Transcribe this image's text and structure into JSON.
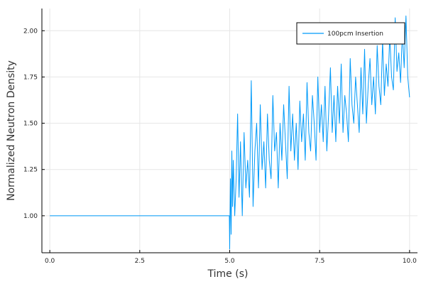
{
  "chart_data": {
    "type": "line",
    "title": "",
    "xlabel": "Time (s)",
    "ylabel": "Normalized Neutron Density",
    "xlim": [
      -0.22,
      10.22
    ],
    "ylim": [
      0.8,
      2.12
    ],
    "xticks": [
      0.0,
      2.5,
      5.0,
      7.5,
      10.0
    ],
    "xtick_labels": [
      "0.0",
      "2.5",
      "5.0",
      "7.5",
      "10.0"
    ],
    "yticks": [
      1.0,
      1.25,
      1.5,
      1.75,
      2.0
    ],
    "ytick_labels": [
      "1.00",
      "1.25",
      "1.50",
      "1.75",
      "2.00"
    ],
    "grid": true,
    "legend_position": "top-right",
    "series": [
      {
        "name": "100pcm Insertion",
        "color": "#009af9",
        "x": [
          0.0,
          0.5,
          1.0,
          1.5,
          2.0,
          2.5,
          3.0,
          3.5,
          4.0,
          4.5,
          4.99,
          5.0,
          5.02,
          5.04,
          5.06,
          5.08,
          5.1,
          5.14,
          5.18,
          5.22,
          5.26,
          5.3,
          5.35,
          5.4,
          5.45,
          5.5,
          5.55,
          5.6,
          5.65,
          5.7,
          5.75,
          5.8,
          5.85,
          5.9,
          5.95,
          6.0,
          6.05,
          6.1,
          6.15,
          6.2,
          6.25,
          6.3,
          6.35,
          6.4,
          6.45,
          6.5,
          6.55,
          6.6,
          6.65,
          6.7,
          6.75,
          6.8,
          6.85,
          6.9,
          6.95,
          7.0,
          7.05,
          7.1,
          7.15,
          7.2,
          7.25,
          7.3,
          7.35,
          7.4,
          7.45,
          7.5,
          7.55,
          7.6,
          7.65,
          7.7,
          7.75,
          7.8,
          7.85,
          7.9,
          7.95,
          8.0,
          8.05,
          8.1,
          8.15,
          8.2,
          8.25,
          8.3,
          8.35,
          8.4,
          8.45,
          8.5,
          8.55,
          8.6,
          8.65,
          8.7,
          8.75,
          8.8,
          8.85,
          8.9,
          8.95,
          9.0,
          9.05,
          9.1,
          9.15,
          9.2,
          9.25,
          9.3,
          9.35,
          9.4,
          9.45,
          9.5,
          9.55,
          9.6,
          9.65,
          9.7,
          9.75,
          9.8,
          9.85,
          9.9,
          9.95,
          10.0
        ],
        "y": [
          1.0,
          1.0,
          1.0,
          1.0,
          1.0,
          1.0,
          1.0,
          1.0,
          1.0,
          1.0,
          1.0,
          0.82,
          1.2,
          0.9,
          1.35,
          1.05,
          1.3,
          1.0,
          1.2,
          1.55,
          1.1,
          1.4,
          1.0,
          1.45,
          1.15,
          1.3,
          1.1,
          1.73,
          1.05,
          1.35,
          1.5,
          1.15,
          1.6,
          1.25,
          1.4,
          1.15,
          1.55,
          1.3,
          1.2,
          1.65,
          1.35,
          1.45,
          1.15,
          1.5,
          1.3,
          1.6,
          1.4,
          1.2,
          1.7,
          1.35,
          1.55,
          1.3,
          1.5,
          1.25,
          1.62,
          1.4,
          1.55,
          1.3,
          1.72,
          1.45,
          1.35,
          1.65,
          1.5,
          1.3,
          1.75,
          1.45,
          1.6,
          1.4,
          1.7,
          1.35,
          1.55,
          1.8,
          1.45,
          1.65,
          1.4,
          1.7,
          1.5,
          1.82,
          1.45,
          1.65,
          1.55,
          1.4,
          1.85,
          1.6,
          1.5,
          1.75,
          1.6,
          1.45,
          1.8,
          1.55,
          1.9,
          1.5,
          1.7,
          1.85,
          1.6,
          1.75,
          1.55,
          1.92,
          1.7,
          1.6,
          1.95,
          1.65,
          1.82,
          1.7,
          1.98,
          1.75,
          1.68,
          2.07,
          1.78,
          1.88,
          1.72,
          2.0,
          1.8,
          2.08,
          1.75,
          1.64
        ]
      }
    ]
  }
}
